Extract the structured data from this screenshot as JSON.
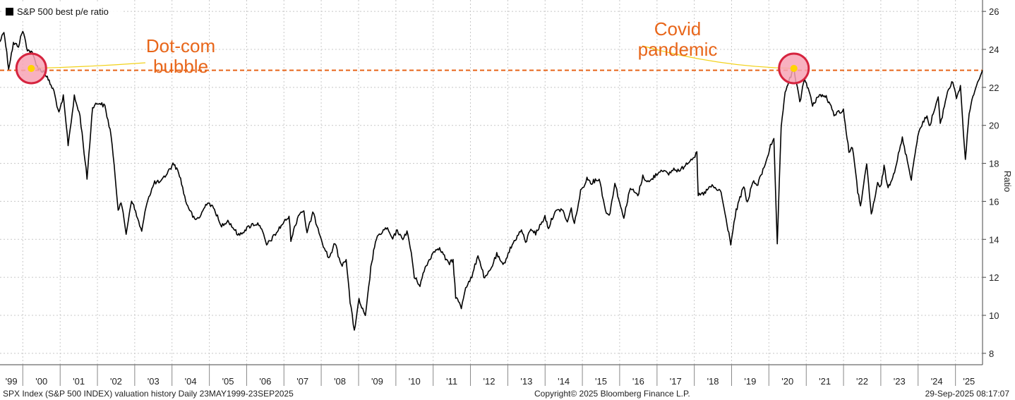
{
  "chart_data": {
    "type": "line",
    "title": "",
    "xlabel": "",
    "ylabel": "Ratio",
    "ylim": [
      7.4,
      26.6
    ],
    "yticks": [
      8,
      10,
      12,
      14,
      16,
      18,
      20,
      22,
      24,
      26
    ],
    "xlim": [
      "1999-05-23",
      "2025-09-23"
    ],
    "xtick_labels": [
      "'99",
      "'00",
      "'01",
      "'02",
      "'03",
      "'04",
      "'05",
      "'06",
      "'07",
      "'08",
      "'09",
      "'10",
      "'11",
      "'12",
      "'13",
      "'14",
      "'15",
      "'16",
      "'17",
      "'18",
      "'19",
      "'20",
      "'21",
      "'22",
      "'23",
      "'24",
      "'25"
    ],
    "grid": true,
    "legend": {
      "placement": "top-left",
      "entries": [
        "S&P 500 best p/e ratio"
      ]
    },
    "series": [
      {
        "name": "S&P 500 best p/e ratio",
        "color": "#000000",
        "points": [
          [
            "1999-05-23",
            24.4
          ],
          [
            "1999-07-01",
            25.0
          ],
          [
            "1999-08-15",
            23.0
          ],
          [
            "1999-10-01",
            24.3
          ],
          [
            "1999-11-20",
            24.2
          ],
          [
            "2000-01-01",
            25.0
          ],
          [
            "2000-02-15",
            24.0
          ],
          [
            "2000-04-01",
            23.8
          ],
          [
            "2000-06-01",
            23.0
          ],
          [
            "2000-08-01",
            22.8
          ],
          [
            "2000-09-15",
            22.3
          ],
          [
            "2000-11-01",
            21.8
          ],
          [
            "2000-12-20",
            20.6
          ],
          [
            "2001-02-01",
            21.5
          ],
          [
            "2001-03-20",
            19.0
          ],
          [
            "2001-05-20",
            21.5
          ],
          [
            "2001-07-15",
            20.5
          ],
          [
            "2001-09-21",
            17.2
          ],
          [
            "2001-11-15",
            21.0
          ],
          [
            "2002-01-15",
            21.2
          ],
          [
            "2002-03-15",
            21.0
          ],
          [
            "2002-05-15",
            19.5
          ],
          [
            "2002-07-23",
            15.6
          ],
          [
            "2002-08-20",
            16.0
          ],
          [
            "2002-10-09",
            14.3
          ],
          [
            "2002-12-01",
            16.1
          ],
          [
            "2003-03-11",
            14.4
          ],
          [
            "2003-05-01",
            16.0
          ],
          [
            "2003-07-15",
            17.0
          ],
          [
            "2003-09-15",
            17.0
          ],
          [
            "2003-11-15",
            17.5
          ],
          [
            "2004-01-20",
            18.0
          ],
          [
            "2004-03-15",
            17.4
          ],
          [
            "2004-05-15",
            16.0
          ],
          [
            "2004-08-10",
            15.0
          ],
          [
            "2004-10-01",
            15.2
          ],
          [
            "2004-12-15",
            16.0
          ],
          [
            "2005-03-01",
            15.5
          ],
          [
            "2005-04-20",
            14.7
          ],
          [
            "2005-07-01",
            15.0
          ],
          [
            "2005-10-15",
            14.2
          ],
          [
            "2005-12-15",
            14.5
          ],
          [
            "2006-03-01",
            14.8
          ],
          [
            "2006-05-10",
            14.8
          ],
          [
            "2006-07-15",
            13.7
          ],
          [
            "2006-10-01",
            14.2
          ],
          [
            "2006-12-15",
            14.8
          ],
          [
            "2007-02-20",
            15.2
          ],
          [
            "2007-03-10",
            14.0
          ],
          [
            "2007-06-01",
            15.4
          ],
          [
            "2007-07-15",
            15.5
          ],
          [
            "2007-08-15",
            14.3
          ],
          [
            "2007-10-10",
            15.4
          ],
          [
            "2007-12-01",
            14.6
          ],
          [
            "2008-01-22",
            13.7
          ],
          [
            "2008-03-15",
            13.0
          ],
          [
            "2008-05-15",
            13.8
          ],
          [
            "2008-07-15",
            12.6
          ],
          [
            "2008-09-01",
            13.0
          ],
          [
            "2008-10-10",
            10.7
          ],
          [
            "2008-11-20",
            9.2
          ],
          [
            "2009-01-05",
            10.8
          ],
          [
            "2009-03-09",
            9.9
          ],
          [
            "2009-05-01",
            12.5
          ],
          [
            "2009-06-15",
            13.9
          ],
          [
            "2009-08-01",
            14.3
          ],
          [
            "2009-10-01",
            14.6
          ],
          [
            "2009-12-01",
            14.0
          ],
          [
            "2010-01-15",
            14.5
          ],
          [
            "2010-03-01",
            14.0
          ],
          [
            "2010-04-20",
            14.4
          ],
          [
            "2010-06-01",
            13.3
          ],
          [
            "2010-07-01",
            12.0
          ],
          [
            "2010-08-25",
            11.6
          ],
          [
            "2010-10-15",
            12.5
          ],
          [
            "2010-12-20",
            13.2
          ],
          [
            "2011-02-15",
            13.6
          ],
          [
            "2011-04-01",
            13.3
          ],
          [
            "2011-06-01",
            12.7
          ],
          [
            "2011-07-15",
            12.9
          ],
          [
            "2011-08-10",
            11.0
          ],
          [
            "2011-10-04",
            10.4
          ],
          [
            "2011-11-15",
            11.5
          ],
          [
            "2012-01-15",
            12.0
          ],
          [
            "2012-03-15",
            13.2
          ],
          [
            "2012-05-20",
            11.9
          ],
          [
            "2012-07-15",
            12.4
          ],
          [
            "2012-09-15",
            13.2
          ],
          [
            "2012-11-15",
            12.6
          ],
          [
            "2013-01-15",
            13.4
          ],
          [
            "2013-03-15",
            14.0
          ],
          [
            "2013-05-15",
            14.5
          ],
          [
            "2013-06-24",
            13.8
          ],
          [
            "2013-08-15",
            14.6
          ],
          [
            "2013-10-01",
            14.3
          ],
          [
            "2013-12-31",
            15.2
          ],
          [
            "2014-02-03",
            14.6
          ],
          [
            "2014-04-01",
            15.4
          ],
          [
            "2014-06-15",
            15.6
          ],
          [
            "2014-08-07",
            14.9
          ],
          [
            "2014-09-15",
            15.6
          ],
          [
            "2014-10-15",
            14.8
          ],
          [
            "2014-12-15",
            16.5
          ],
          [
            "2015-02-15",
            17.2
          ],
          [
            "2015-04-01",
            17.0
          ],
          [
            "2015-06-15",
            17.2
          ],
          [
            "2015-08-25",
            15.3
          ],
          [
            "2015-09-29",
            15.4
          ],
          [
            "2015-11-15",
            17.0
          ],
          [
            "2016-01-20",
            15.5
          ],
          [
            "2016-02-11",
            15.2
          ],
          [
            "2016-04-15",
            16.7
          ],
          [
            "2016-06-27",
            16.3
          ],
          [
            "2016-08-15",
            17.3
          ],
          [
            "2016-10-15",
            17.0
          ],
          [
            "2016-12-20",
            17.4
          ],
          [
            "2017-02-20",
            17.7
          ],
          [
            "2017-04-15",
            17.4
          ],
          [
            "2017-06-15",
            17.7
          ],
          [
            "2017-08-15",
            17.6
          ],
          [
            "2017-10-15",
            18.0
          ],
          [
            "2018-01-26",
            18.5
          ],
          [
            "2018-02-08",
            16.3
          ],
          [
            "2018-04-01",
            16.4
          ],
          [
            "2018-06-15",
            16.8
          ],
          [
            "2018-09-20",
            16.5
          ],
          [
            "2018-10-29",
            15.3
          ],
          [
            "2018-12-24",
            13.8
          ],
          [
            "2019-02-15",
            15.5
          ],
          [
            "2019-04-30",
            16.8
          ],
          [
            "2019-06-03",
            15.9
          ],
          [
            "2019-07-26",
            17.0
          ],
          [
            "2019-09-15",
            16.9
          ],
          [
            "2019-11-15",
            17.8
          ],
          [
            "2020-01-17",
            18.9
          ],
          [
            "2020-02-19",
            19.2
          ],
          [
            "2020-03-23",
            13.7
          ],
          [
            "2020-04-30",
            19.8
          ],
          [
            "2020-06-08",
            21.8
          ],
          [
            "2020-07-15",
            22.3
          ],
          [
            "2020-09-02",
            23.0
          ],
          [
            "2020-10-30",
            21.2
          ],
          [
            "2020-12-15",
            22.5
          ],
          [
            "2021-01-29",
            21.8
          ],
          [
            "2021-03-04",
            21.0
          ],
          [
            "2021-05-01",
            21.6
          ],
          [
            "2021-07-15",
            21.5
          ],
          [
            "2021-09-30",
            20.6
          ],
          [
            "2021-12-31",
            20.8
          ],
          [
            "2022-02-23",
            18.6
          ],
          [
            "2022-03-29",
            18.9
          ],
          [
            "2022-05-20",
            16.5
          ],
          [
            "2022-06-16",
            15.8
          ],
          [
            "2022-08-16",
            17.9
          ],
          [
            "2022-09-30",
            15.3
          ],
          [
            "2022-12-01",
            16.9
          ],
          [
            "2022-12-28",
            16.7
          ],
          [
            "2023-02-02",
            17.8
          ],
          [
            "2023-03-13",
            16.7
          ],
          [
            "2023-05-15",
            17.6
          ],
          [
            "2023-07-31",
            19.3
          ],
          [
            "2023-10-27",
            17.2
          ],
          [
            "2023-12-29",
            19.5
          ],
          [
            "2024-03-28",
            20.6
          ],
          [
            "2024-04-19",
            19.9
          ],
          [
            "2024-07-16",
            21.5
          ],
          [
            "2024-08-05",
            20.0
          ],
          [
            "2024-10-15",
            21.8
          ],
          [
            "2024-12-06",
            22.3
          ],
          [
            "2025-01-10",
            21.5
          ],
          [
            "2025-02-19",
            22.0
          ],
          [
            "2025-04-08",
            18.1
          ],
          [
            "2025-05-15",
            20.7
          ],
          [
            "2025-06-30",
            21.7
          ],
          [
            "2025-08-15",
            22.4
          ],
          [
            "2025-09-23",
            22.9
          ]
        ]
      }
    ],
    "reference_line": {
      "y": 22.9,
      "color": "#e8661a",
      "style": "dashed"
    },
    "annotations": [
      {
        "text_lines": [
          "Dot-com",
          "bubble"
        ],
        "color": "#e8661a",
        "marker_date": "2000-03-24",
        "marker_y": 23.0
      },
      {
        "text_lines": [
          "Covid",
          "pandemic"
        ],
        "color": "#e8661a",
        "marker_date": "2020-09-02",
        "marker_y": 23.0
      }
    ]
  },
  "footer": {
    "left": "SPX Index (S&P 500 INDEX) valuation history  Daily 23MAY1999-23SEP2025",
    "center": "Copyright© 2025 Bloomberg Finance L.P.",
    "right": "29-Sep-2025 08:17:07"
  }
}
